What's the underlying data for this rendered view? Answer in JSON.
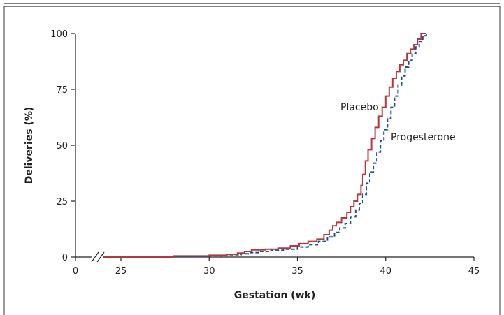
{
  "chart_data": {
    "type": "line",
    "title": "",
    "xlabel": "Gestation (wk)",
    "ylabel": "Deliveries (%)",
    "xlim": [
      0,
      45
    ],
    "ylim": [
      0,
      100
    ],
    "axis_break": "x between 0 and 25",
    "x_ticks": [
      0,
      25,
      30,
      35,
      40,
      45
    ],
    "y_ticks": [
      0,
      25,
      50,
      75,
      100
    ],
    "grid": false,
    "legend": "inline labels",
    "series": [
      {
        "name": "Placebo",
        "color": "#b23a3f",
        "style": "solid step",
        "x": [
          24,
          28,
          30,
          31,
          31.6,
          32,
          32.4,
          33.2,
          33.9,
          34.6,
          35.1,
          35.6,
          36.1,
          36.5,
          36.8,
          37.0,
          37.2,
          37.5,
          37.8,
          38.0,
          38.2,
          38.4,
          38.6,
          38.7,
          38.85,
          39.0,
          39.2,
          39.4,
          39.6,
          39.8,
          40.0,
          40.2,
          40.4,
          40.6,
          40.8,
          41.0,
          41.2,
          41.4,
          41.6,
          41.8,
          42.0,
          42.3
        ],
        "y": [
          0,
          0.5,
          0.8,
          1.2,
          1.8,
          2.5,
          3.2,
          3.5,
          4.0,
          5.0,
          6.0,
          7.0,
          8.0,
          10.0,
          12.0,
          14.0,
          15.5,
          17.5,
          20.0,
          22.5,
          25.0,
          28.0,
          32.0,
          37.0,
          43.0,
          48.0,
          53.0,
          58.0,
          63.0,
          67.0,
          72.0,
          76.0,
          80.0,
          83.0,
          86.0,
          88.0,
          91.0,
          93.0,
          95.0,
          97.5,
          100,
          100
        ]
      },
      {
        "name": "Progesterone",
        "color": "#1f4e8c",
        "style": "dashed step",
        "x": [
          24,
          28,
          30,
          31,
          31.8,
          32.3,
          32.8,
          33.5,
          34.2,
          35.0,
          35.6,
          36.2,
          36.7,
          37.1,
          37.4,
          37.7,
          38.0,
          38.3,
          38.5,
          38.7,
          38.9,
          39.1,
          39.3,
          39.5,
          39.7,
          39.9,
          40.1,
          40.3,
          40.5,
          40.7,
          40.9,
          41.1,
          41.3,
          41.5,
          41.7,
          41.9,
          42.1,
          42.3
        ],
        "y": [
          0,
          0.3,
          0.6,
          1.0,
          1.5,
          2.0,
          2.5,
          3.0,
          3.5,
          4.5,
          5.5,
          7.0,
          9.0,
          11.0,
          13.0,
          15.0,
          18.0,
          21.0,
          24.0,
          28.0,
          33.0,
          38.0,
          42.0,
          47.0,
          52.0,
          57.0,
          62.0,
          67.0,
          72.0,
          77.0,
          81.0,
          85.0,
          88.0,
          91.0,
          94.0,
          96.5,
          99.0,
          100
        ]
      }
    ]
  }
}
